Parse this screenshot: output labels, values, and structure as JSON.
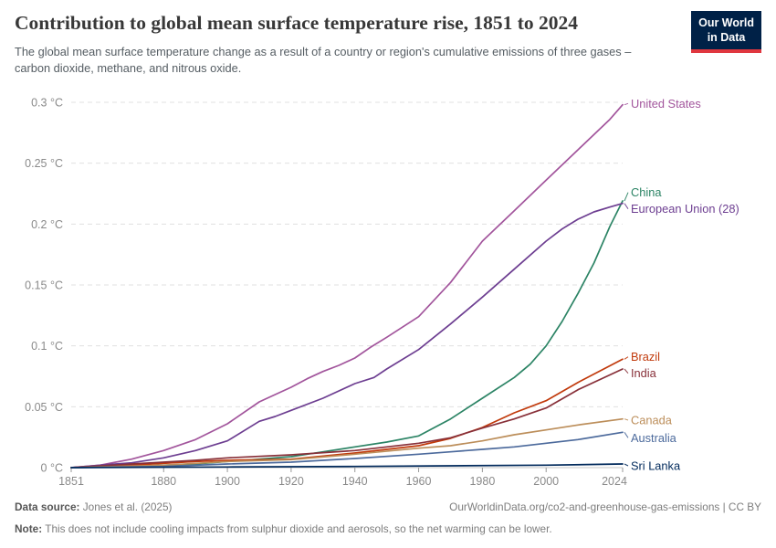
{
  "header": {
    "title": "Contribution to global mean surface temperature rise, 1851 to 2024",
    "subtitle": "The global mean surface temperature change as a result of a country or region's cumulative emissions of three gases – carbon dioxide, methane, and nitrous oxide.",
    "logo": {
      "line1": "Our World",
      "line2": "in Data",
      "bg_color": "#002147",
      "accent_color": "#e0373f"
    }
  },
  "footer": {
    "source_label": "Data source:",
    "source_value": "Jones et al. (2025)",
    "link_text": "OurWorldinData.org/co2-and-greenhouse-gas-emissions | CC BY",
    "note_label": "Note:",
    "note_value": "This does not include cooling impacts from sulphur dioxide and aerosols, so the net warming can be lower."
  },
  "chart_data": {
    "type": "line",
    "title": "Contribution to global mean surface temperature rise, 1851 to 2024",
    "xlabel": "",
    "ylabel": "",
    "x_range": [
      1851,
      2024
    ],
    "y_range": [
      0,
      0.3
    ],
    "grid": "horizontal-dashed",
    "legend_position": "right-end-labels",
    "x_ticks": [
      1851,
      1880,
      1900,
      1920,
      1940,
      1960,
      1980,
      2000,
      2024
    ],
    "y_ticks": [
      {
        "value": 0,
        "label": "0 °C"
      },
      {
        "value": 0.05,
        "label": "0.05 °C"
      },
      {
        "value": 0.1,
        "label": "0.1 °C"
      },
      {
        "value": 0.15,
        "label": "0.15 °C"
      },
      {
        "value": 0.2,
        "label": "0.2 °C"
      },
      {
        "value": 0.25,
        "label": "0.25 °C"
      },
      {
        "value": 0.3,
        "label": "0.3 °C"
      }
    ],
    "unit": "°C",
    "series": [
      {
        "name": "United States",
        "color": "#A2559C",
        "label_value": 0.299,
        "points": [
          [
            1851,
            0
          ],
          [
            1860,
            0.002
          ],
          [
            1870,
            0.007
          ],
          [
            1880,
            0.014
          ],
          [
            1890,
            0.023
          ],
          [
            1900,
            0.036
          ],
          [
            1910,
            0.054
          ],
          [
            1915,
            0.06
          ],
          [
            1920,
            0.066
          ],
          [
            1925,
            0.073
          ],
          [
            1930,
            0.079
          ],
          [
            1935,
            0.084
          ],
          [
            1940,
            0.09
          ],
          [
            1945,
            0.099
          ],
          [
            1950,
            0.107
          ],
          [
            1960,
            0.124
          ],
          [
            1970,
            0.152
          ],
          [
            1980,
            0.186
          ],
          [
            1990,
            0.211
          ],
          [
            2000,
            0.236
          ],
          [
            2010,
            0.261
          ],
          [
            2020,
            0.286
          ],
          [
            2024,
            0.298
          ]
        ]
      },
      {
        "name": "China",
        "color": "#2C8465",
        "label_value": 0.226,
        "points": [
          [
            1851,
            0
          ],
          [
            1870,
            0.001
          ],
          [
            1890,
            0.003
          ],
          [
            1900,
            0.005
          ],
          [
            1910,
            0.007
          ],
          [
            1920,
            0.009
          ],
          [
            1930,
            0.013
          ],
          [
            1940,
            0.017
          ],
          [
            1950,
            0.021
          ],
          [
            1960,
            0.026
          ],
          [
            1970,
            0.04
          ],
          [
            1980,
            0.057
          ],
          [
            1990,
            0.074
          ],
          [
            1995,
            0.085
          ],
          [
            2000,
            0.1
          ],
          [
            2005,
            0.12
          ],
          [
            2010,
            0.143
          ],
          [
            2015,
            0.168
          ],
          [
            2020,
            0.198
          ],
          [
            2024,
            0.219
          ]
        ]
      },
      {
        "name": "European Union (28)",
        "color": "#6D3E91",
        "label_value": 0.2125,
        "points": [
          [
            1851,
            0
          ],
          [
            1860,
            0.002
          ],
          [
            1870,
            0.004
          ],
          [
            1880,
            0.008
          ],
          [
            1890,
            0.014
          ],
          [
            1900,
            0.022
          ],
          [
            1910,
            0.038
          ],
          [
            1915,
            0.042
          ],
          [
            1920,
            0.047
          ],
          [
            1930,
            0.057
          ],
          [
            1940,
            0.069
          ],
          [
            1946,
            0.074
          ],
          [
            1950,
            0.081
          ],
          [
            1960,
            0.097
          ],
          [
            1970,
            0.118
          ],
          [
            1980,
            0.14
          ],
          [
            1990,
            0.163
          ],
          [
            2000,
            0.186
          ],
          [
            2005,
            0.196
          ],
          [
            2010,
            0.204
          ],
          [
            2015,
            0.21
          ],
          [
            2020,
            0.214
          ],
          [
            2024,
            0.217
          ]
        ]
      },
      {
        "name": "Brazil",
        "color": "#C13A0C",
        "label_value": 0.091,
        "points": [
          [
            1851,
            0
          ],
          [
            1870,
            0.002
          ],
          [
            1890,
            0.005
          ],
          [
            1900,
            0.006
          ],
          [
            1920,
            0.007
          ],
          [
            1940,
            0.012
          ],
          [
            1950,
            0.015
          ],
          [
            1960,
            0.018
          ],
          [
            1970,
            0.024
          ],
          [
            1980,
            0.033
          ],
          [
            1990,
            0.045
          ],
          [
            2000,
            0.055
          ],
          [
            2010,
            0.07
          ],
          [
            2024,
            0.089
          ]
        ]
      },
      {
        "name": "India",
        "color": "#883039",
        "label_value": 0.0775,
        "points": [
          [
            1851,
            0
          ],
          [
            1870,
            0.003
          ],
          [
            1890,
            0.006
          ],
          [
            1900,
            0.008
          ],
          [
            1920,
            0.0105
          ],
          [
            1940,
            0.014
          ],
          [
            1950,
            0.017
          ],
          [
            1960,
            0.02
          ],
          [
            1970,
            0.0245
          ],
          [
            1980,
            0.0325
          ],
          [
            1990,
            0.04
          ],
          [
            2000,
            0.049
          ],
          [
            2010,
            0.064
          ],
          [
            2024,
            0.081
          ]
        ]
      },
      {
        "name": "Canada",
        "color": "#BC8E5A",
        "label_value": 0.039,
        "points": [
          [
            1851,
            0
          ],
          [
            1880,
            0.002
          ],
          [
            1900,
            0.005
          ],
          [
            1920,
            0.0065
          ],
          [
            1940,
            0.011
          ],
          [
            1960,
            0.016
          ],
          [
            1970,
            0.018
          ],
          [
            1980,
            0.022
          ],
          [
            1990,
            0.027
          ],
          [
            2000,
            0.031
          ],
          [
            2010,
            0.035
          ],
          [
            2024,
            0.04
          ]
        ]
      },
      {
        "name": "Australia",
        "color": "#4C6A9C",
        "label_value": 0.0245,
        "points": [
          [
            1851,
            0
          ],
          [
            1880,
            0.001
          ],
          [
            1900,
            0.003
          ],
          [
            1920,
            0.0045
          ],
          [
            1940,
            0.0075
          ],
          [
            1960,
            0.011
          ],
          [
            1970,
            0.013
          ],
          [
            1980,
            0.015
          ],
          [
            1990,
            0.017
          ],
          [
            2000,
            0.02
          ],
          [
            2010,
            0.023
          ],
          [
            2024,
            0.029
          ]
        ]
      },
      {
        "name": "Sri Lanka",
        "color": "#00295B",
        "label_value": 0.0015,
        "points": [
          [
            1851,
            0
          ],
          [
            1900,
            0.0005
          ],
          [
            1940,
            0.001
          ],
          [
            1970,
            0.0015
          ],
          [
            2000,
            0.002
          ],
          [
            2024,
            0.003
          ]
        ]
      }
    ],
    "style": {
      "grid_color": "#e0e0e0",
      "zero_line_color": "#c4c4c4",
      "tick_color": "#999999",
      "axis_text_color": "#8a8a8a"
    }
  }
}
